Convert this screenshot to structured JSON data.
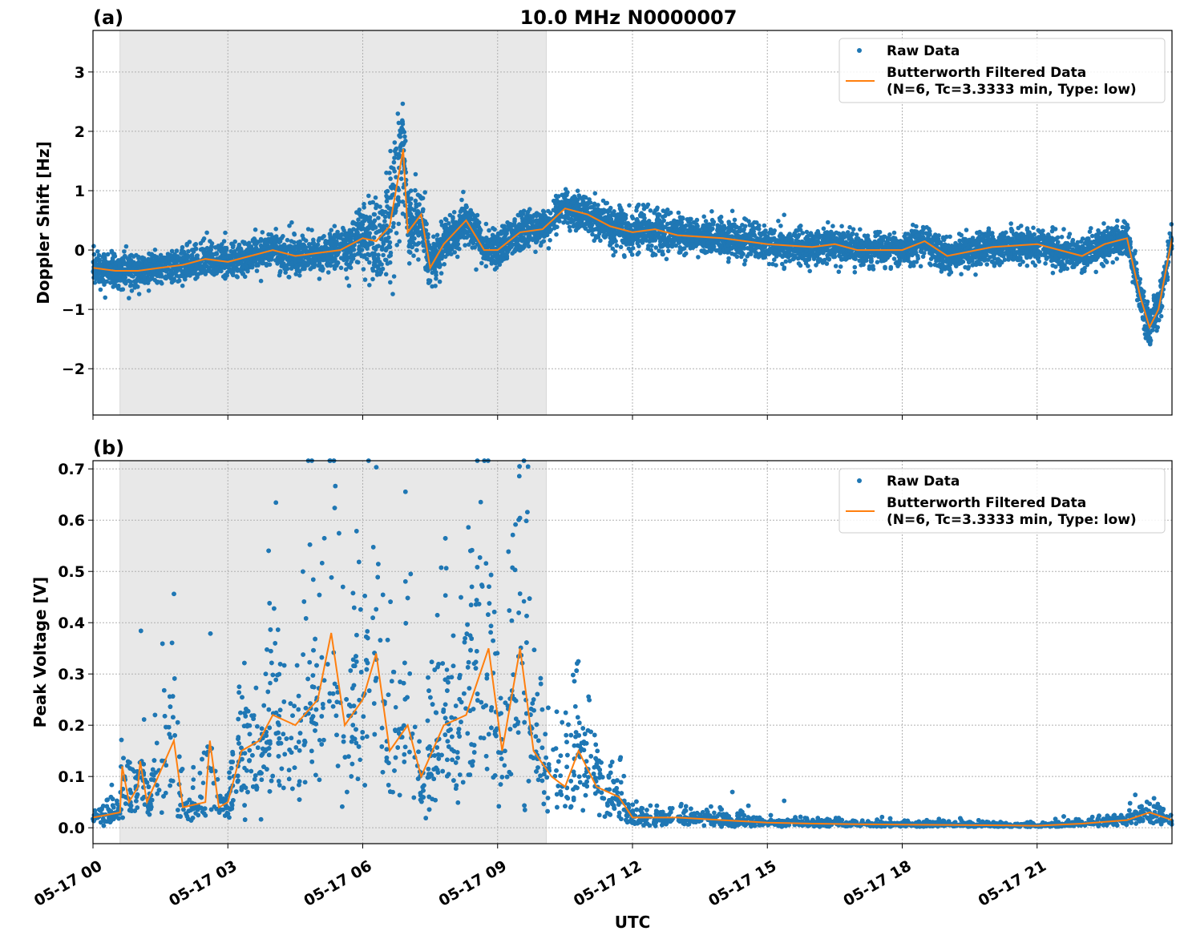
{
  "chart_data": [
    {
      "type": "scatter+line",
      "panel_label": "(a)",
      "title": "10.0 MHz N0000007",
      "ylabel": "Doppler Shift [Hz]",
      "xlabel": "",
      "date": "05-17",
      "xlim": [
        "05-17 00:00",
        "05-18 00:00"
      ],
      "ylim": [
        -2.78,
        3.7
      ],
      "yticks": [
        {
          "v": -2,
          "label": "−2"
        },
        {
          "v": -1,
          "label": "−1"
        },
        {
          "v": 0,
          "label": "0"
        },
        {
          "v": 1,
          "label": "1"
        },
        {
          "v": 2,
          "label": "2"
        },
        {
          "v": 3,
          "label": "3"
        }
      ],
      "shaded_interval": [
        "00:36",
        "10:05"
      ],
      "grid": true,
      "legend_placement": "top-right",
      "legend": [
        "Raw Data",
        "Butterworth Filtered Data",
        "(N=6, Tc=3.3333 min, Type: low)"
      ],
      "series": [
        {
          "name": "Raw Data",
          "kind": "scatter",
          "color": "#1f77b4",
          "spread_mode": "additive",
          "spread": [
            [
              "00:00",
              0.3
            ],
            [
              "05:30",
              0.35
            ],
            [
              "06:00",
              0.6
            ],
            [
              "06:30",
              0.9
            ],
            [
              "06:50",
              1.5
            ],
            [
              "07:05",
              0.8
            ],
            [
              "07:30",
              0.4
            ],
            [
              "10:00",
              0.3
            ],
            [
              "12:00",
              0.4
            ],
            [
              "14:00",
              0.3
            ],
            [
              "23:00",
              0.3
            ],
            [
              "23:30",
              0.4
            ],
            [
              "24:00",
              0.3
            ]
          ]
        },
        {
          "name": "Butterworth Filtered Data",
          "kind": "line",
          "color": "#ff7f0e",
          "points": [
            [
              "00:00",
              -0.3
            ],
            [
              "00:30",
              -0.35
            ],
            [
              "01:00",
              -0.35
            ],
            [
              "01:30",
              -0.3
            ],
            [
              "02:00",
              -0.25
            ],
            [
              "02:30",
              -0.15
            ],
            [
              "03:00",
              -0.2
            ],
            [
              "03:30",
              -0.1
            ],
            [
              "04:00",
              0.0
            ],
            [
              "04:30",
              -0.1
            ],
            [
              "05:00",
              -0.05
            ],
            [
              "05:30",
              0.0
            ],
            [
              "06:00",
              0.2
            ],
            [
              "06:18",
              0.15
            ],
            [
              "06:36",
              0.4
            ],
            [
              "06:54",
              1.7
            ],
            [
              "07:00",
              0.3
            ],
            [
              "07:18",
              0.6
            ],
            [
              "07:30",
              -0.3
            ],
            [
              "07:48",
              0.1
            ],
            [
              "08:18",
              0.5
            ],
            [
              "08:42",
              0.0
            ],
            [
              "09:00",
              0.0
            ],
            [
              "09:30",
              0.3
            ],
            [
              "10:00",
              0.35
            ],
            [
              "10:30",
              0.7
            ],
            [
              "11:00",
              0.6
            ],
            [
              "11:30",
              0.4
            ],
            [
              "12:00",
              0.3
            ],
            [
              "12:30",
              0.35
            ],
            [
              "13:00",
              0.25
            ],
            [
              "14:00",
              0.2
            ],
            [
              "15:00",
              0.1
            ],
            [
              "16:00",
              0.05
            ],
            [
              "16:30",
              0.1
            ],
            [
              "17:00",
              0.0
            ],
            [
              "18:00",
              0.0
            ],
            [
              "18:30",
              0.15
            ],
            [
              "19:00",
              -0.1
            ],
            [
              "20:00",
              0.05
            ],
            [
              "21:00",
              0.1
            ],
            [
              "21:30",
              0.0
            ],
            [
              "22:00",
              -0.1
            ],
            [
              "22:30",
              0.1
            ],
            [
              "23:00",
              0.2
            ],
            [
              "23:18",
              -0.8
            ],
            [
              "23:30",
              -1.3
            ],
            [
              "23:42",
              -1.0
            ],
            [
              "24:00",
              0.2
            ]
          ]
        }
      ]
    },
    {
      "type": "scatter+line",
      "panel_label": "(b)",
      "title": "",
      "ylabel": "Peak Voltage [V]",
      "xlabel": "UTC",
      "date": "05-17",
      "xlim": [
        "05-17 00:00",
        "05-18 00:00"
      ],
      "ylim": [
        -0.031,
        0.716
      ],
      "yticks": [
        {
          "v": 0,
          "label": "0.0"
        },
        {
          "v": 0.1,
          "label": "0.1"
        },
        {
          "v": 0.2,
          "label": "0.2"
        },
        {
          "v": 0.3,
          "label": "0.3"
        },
        {
          "v": 0.4,
          "label": "0.4"
        },
        {
          "v": 0.5,
          "label": "0.5"
        },
        {
          "v": 0.6,
          "label": "0.6"
        },
        {
          "v": 0.7,
          "label": "0.7"
        }
      ],
      "xticks": [
        "05-17 00",
        "05-17 03",
        "05-17 06",
        "05-17 09",
        "05-17 12",
        "05-17 15",
        "05-17 18",
        "05-17 21"
      ],
      "shaded_interval": [
        "00:36",
        "10:05"
      ],
      "grid": true,
      "legend_placement": "top-right",
      "legend": [
        "Raw Data",
        "Butterworth Filtered Data",
        "(N=6, Tc=3.3333 min, Type: low)"
      ],
      "series": [
        {
          "name": "Raw Data",
          "kind": "scatter",
          "color": "#1f77b4",
          "spread_mode": "multiplicative",
          "spread": [
            [
              "00:00",
              0.8
            ],
            [
              "24:00",
              0.8
            ]
          ]
        },
        {
          "name": "Butterworth Filtered Data",
          "kind": "line",
          "color": "#ff7f0e",
          "points": [
            [
              "00:00",
              0.02
            ],
            [
              "00:36",
              0.03
            ],
            [
              "00:39",
              0.12
            ],
            [
              "00:48",
              0.05
            ],
            [
              "01:00",
              0.08
            ],
            [
              "01:03",
              0.13
            ],
            [
              "01:12",
              0.05
            ],
            [
              "01:36",
              0.13
            ],
            [
              "01:48",
              0.17
            ],
            [
              "02:00",
              0.04
            ],
            [
              "02:30",
              0.05
            ],
            [
              "02:36",
              0.17
            ],
            [
              "02:48",
              0.04
            ],
            [
              "03:00",
              0.05
            ],
            [
              "03:18",
              0.15
            ],
            [
              "03:42",
              0.17
            ],
            [
              "04:00",
              0.22
            ],
            [
              "04:30",
              0.2
            ],
            [
              "05:00",
              0.25
            ],
            [
              "05:18",
              0.38
            ],
            [
              "05:36",
              0.2
            ],
            [
              "06:00",
              0.25
            ],
            [
              "06:18",
              0.34
            ],
            [
              "06:36",
              0.15
            ],
            [
              "07:00",
              0.2
            ],
            [
              "07:18",
              0.1
            ],
            [
              "07:48",
              0.2
            ],
            [
              "08:18",
              0.22
            ],
            [
              "08:48",
              0.35
            ],
            [
              "09:06",
              0.15
            ],
            [
              "09:30",
              0.35
            ],
            [
              "09:48",
              0.15
            ],
            [
              "10:12",
              0.1
            ],
            [
              "10:30",
              0.08
            ],
            [
              "10:48",
              0.15
            ],
            [
              "11:12",
              0.08
            ],
            [
              "11:42",
              0.06
            ],
            [
              "12:00",
              0.02
            ],
            [
              "13:00",
              0.02
            ],
            [
              "14:00",
              0.015
            ],
            [
              "15:00",
              0.01
            ],
            [
              "16:00",
              0.008
            ],
            [
              "17:00",
              0.007
            ],
            [
              "18:00",
              0.006
            ],
            [
              "20:00",
              0.005
            ],
            [
              "21:00",
              0.004
            ],
            [
              "22:00",
              0.008
            ],
            [
              "23:00",
              0.015
            ],
            [
              "23:30",
              0.03
            ],
            [
              "24:00",
              0.015
            ]
          ]
        }
      ]
    }
  ]
}
